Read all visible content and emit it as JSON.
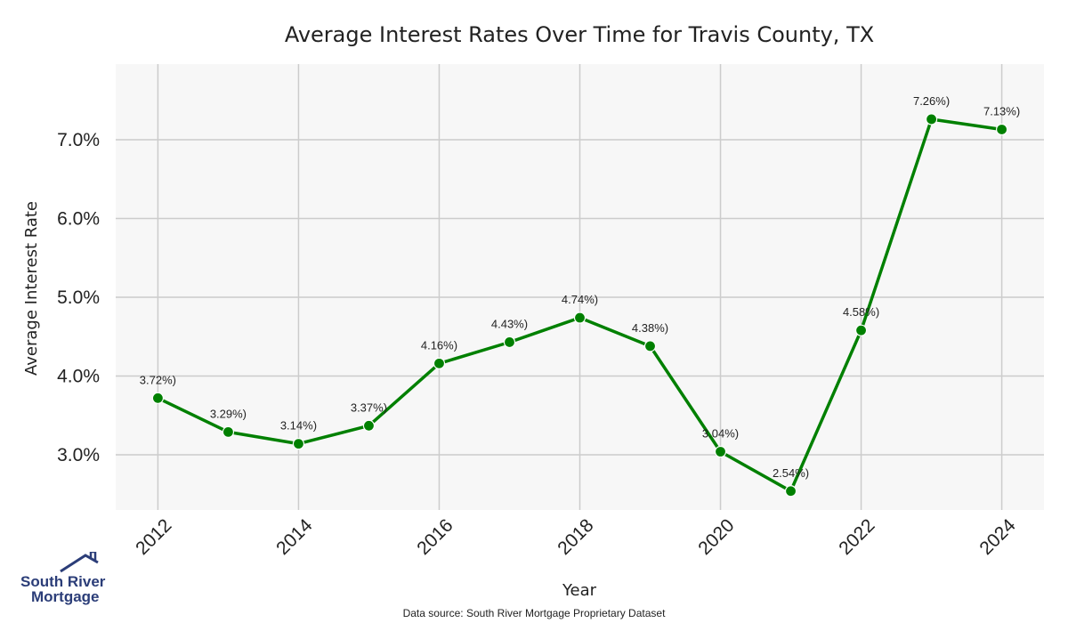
{
  "logo": {
    "line1": "South River",
    "line2": "Mortgage",
    "color": "#2b3d78"
  },
  "source_note": "Data source: South River Mortgage Proprietary Dataset",
  "colors": {
    "line": "#008000",
    "plot_bg": "#f7f7f7",
    "grid": "#cccccc"
  },
  "chart_data": {
    "type": "line",
    "title": "Average Interest Rates Over Time for Travis County, TX",
    "xlabel": "Year",
    "ylabel": "Average Interest Rate",
    "x": [
      2012,
      2013,
      2014,
      2015,
      2016,
      2017,
      2018,
      2019,
      2020,
      2021,
      2022,
      2023,
      2024
    ],
    "series": [
      {
        "values": [
          3.72,
          3.29,
          3.14,
          3.37,
          4.16,
          4.43,
          4.74,
          4.38,
          3.04,
          2.54,
          4.58,
          7.26,
          7.13
        ]
      }
    ],
    "data_labels": [
      "3.72%)",
      "3.29%)",
      "3.14%)",
      "3.37%)",
      "4.16%)",
      "4.43%)",
      "4.74%)",
      "4.38%)",
      "3.04%)",
      "2.54%)",
      "4.58%)",
      "7.26%)",
      "7.13%)"
    ],
    "xticks": [
      2012,
      2014,
      2016,
      2018,
      2020,
      2022,
      2024
    ],
    "yticks": [
      3.0,
      4.0,
      5.0,
      6.0,
      7.0
    ],
    "ytick_labels": [
      "3.0%",
      "4.0%",
      "5.0%",
      "6.0%",
      "7.0%"
    ],
    "xlim": [
      2011.4,
      2024.6
    ],
    "ylim": [
      2.3,
      7.96
    ],
    "grid": true,
    "marker": "circle"
  }
}
